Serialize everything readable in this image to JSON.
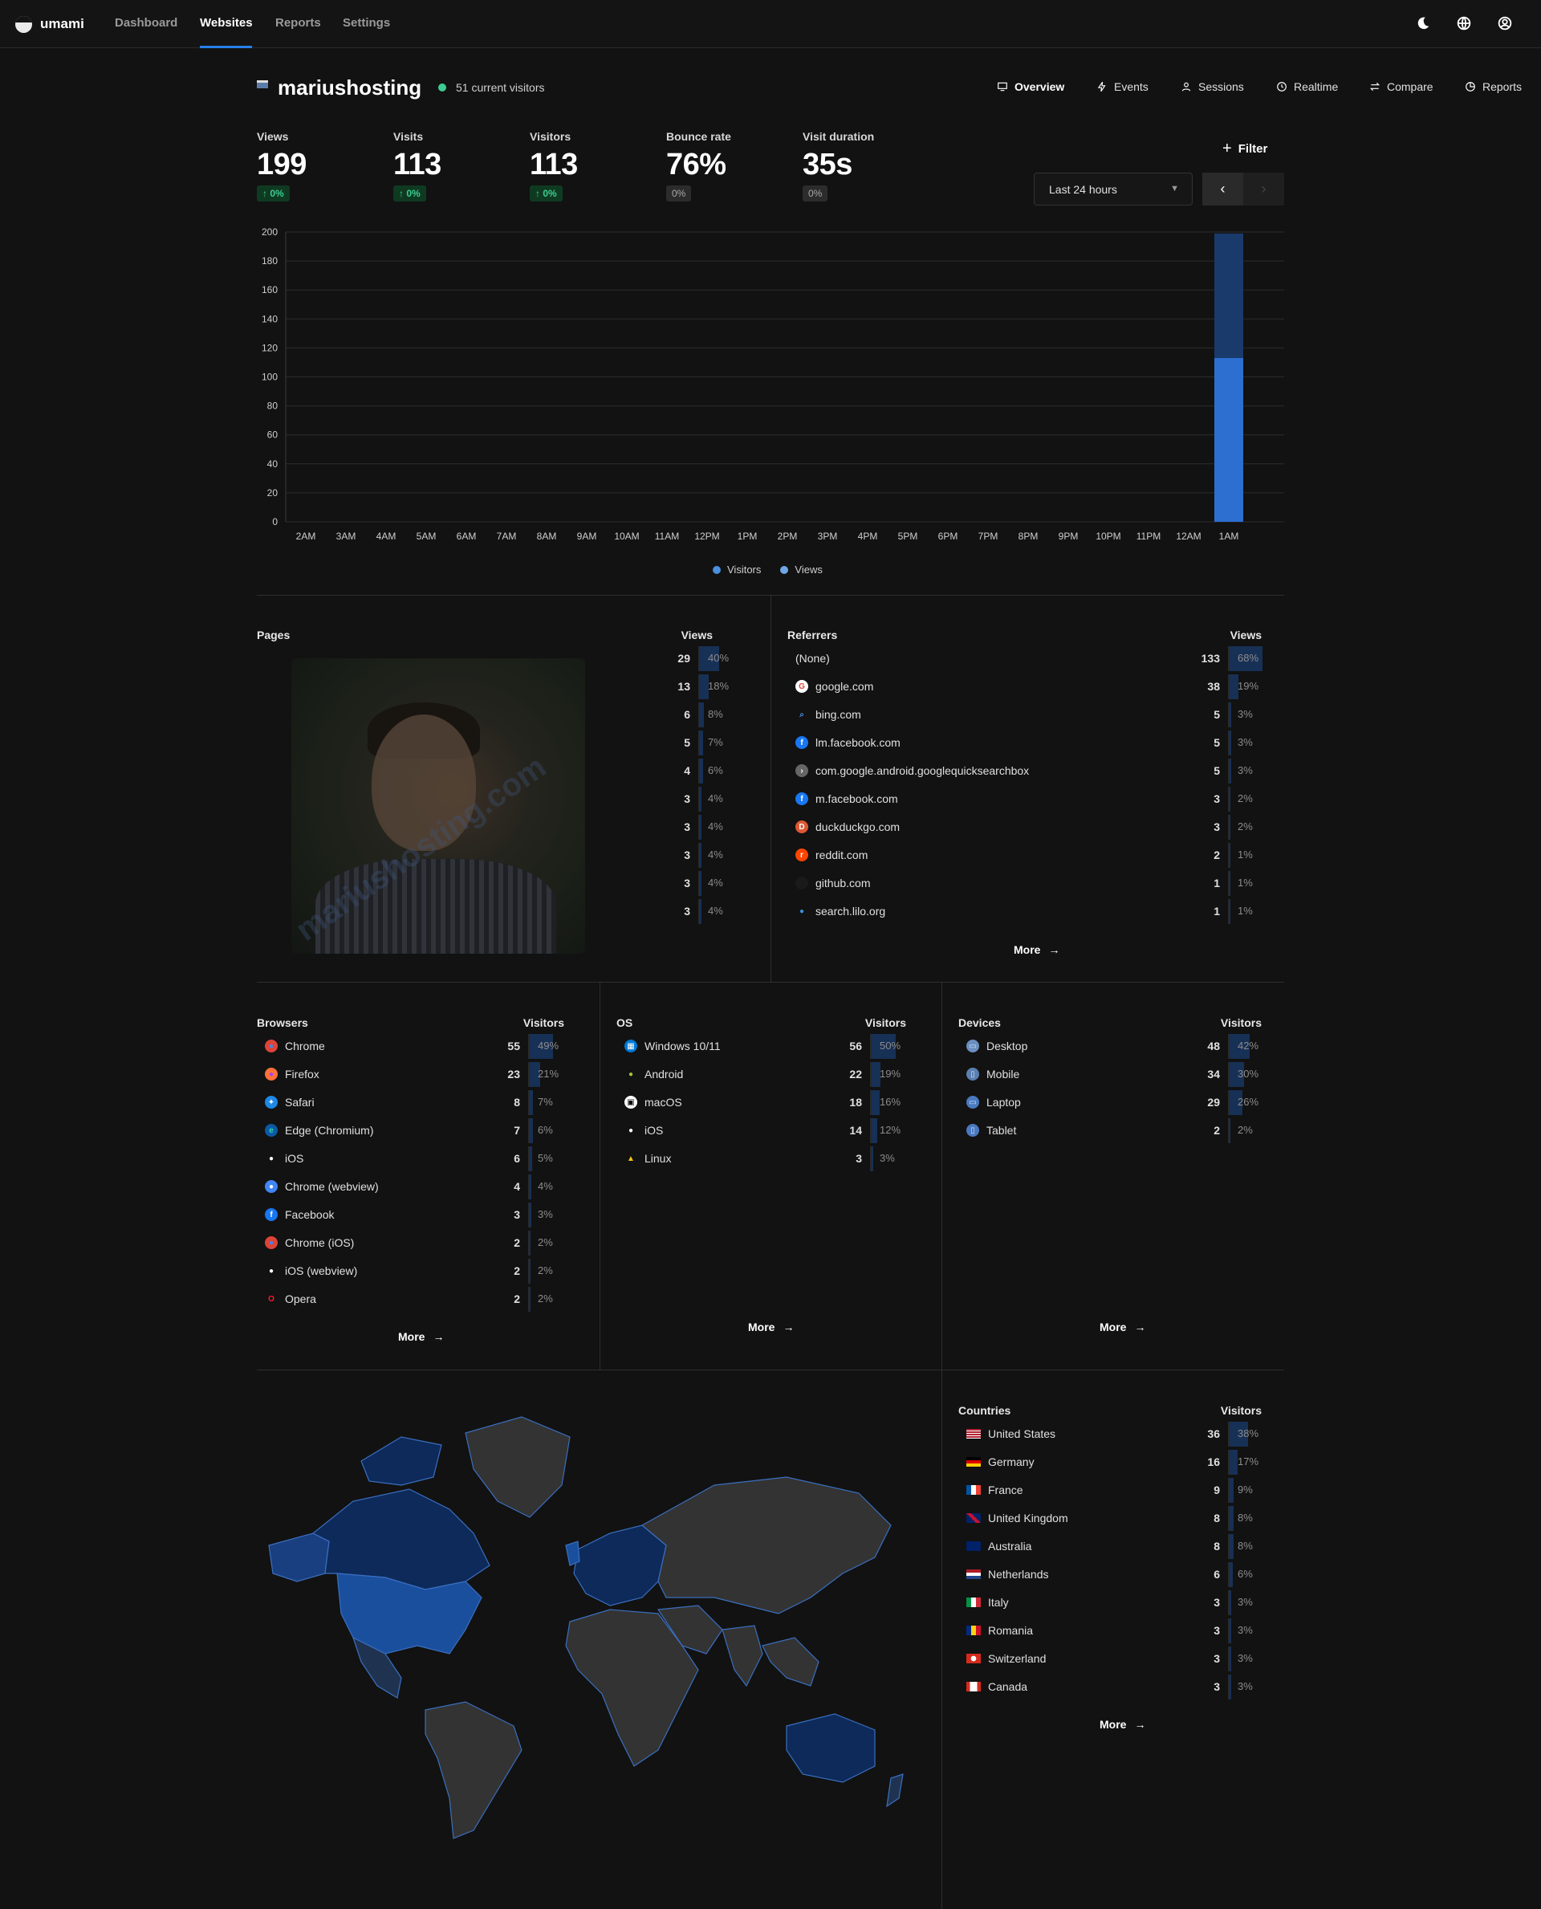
{
  "app": {
    "name": "umami"
  },
  "nav": {
    "items": [
      "Dashboard",
      "Websites",
      "Reports",
      "Settings"
    ]
  },
  "site": {
    "name": "mariushosting",
    "live": "51 current visitors"
  },
  "tabs": [
    "Overview",
    "Events",
    "Sessions",
    "Realtime",
    "Compare",
    "Reports"
  ],
  "metrics": [
    {
      "label": "Views",
      "value": "199",
      "change": "0%",
      "trend": "up"
    },
    {
      "label": "Visits",
      "value": "113",
      "change": "0%",
      "trend": "up"
    },
    {
      "label": "Visitors",
      "value": "113",
      "change": "0%",
      "trend": "up"
    },
    {
      "label": "Bounce rate",
      "value": "76%",
      "change": "0%",
      "trend": "flat"
    },
    {
      "label": "Visit duration",
      "value": "35s",
      "change": "0%",
      "trend": "flat"
    }
  ],
  "filter": {
    "label": "Filter"
  },
  "range": {
    "label": "Last 24 hours"
  },
  "colors": {
    "accent": "#2680eb",
    "visitors": "#2c6fd1",
    "views": "#1a3a6b",
    "up": "#3dcc91"
  },
  "chart_data": {
    "type": "bar",
    "categories": [
      "2AM",
      "3AM",
      "4AM",
      "5AM",
      "6AM",
      "7AM",
      "8AM",
      "9AM",
      "10AM",
      "11AM",
      "12PM",
      "1PM",
      "2PM",
      "3PM",
      "4PM",
      "5PM",
      "6PM",
      "7PM",
      "8PM",
      "9PM",
      "10PM",
      "11PM",
      "12AM",
      "1AM"
    ],
    "series": [
      {
        "name": "Visitors",
        "values": [
          0,
          0,
          0,
          0,
          0,
          0,
          0,
          0,
          0,
          0,
          0,
          0,
          0,
          0,
          0,
          0,
          0,
          0,
          0,
          0,
          0,
          0,
          0,
          113
        ]
      },
      {
        "name": "Views",
        "values": [
          0,
          0,
          0,
          0,
          0,
          0,
          0,
          0,
          0,
          0,
          0,
          0,
          0,
          0,
          0,
          0,
          0,
          0,
          0,
          0,
          0,
          0,
          0,
          199
        ]
      }
    ],
    "ylim": [
      0,
      200
    ],
    "yticks": [
      0,
      20,
      40,
      60,
      80,
      100,
      120,
      140,
      160,
      180,
      200
    ],
    "stacked": "overlay",
    "grid": true,
    "legend": "bottom"
  },
  "pages": {
    "title": "Pages",
    "metric": "Views",
    "rows": [
      {
        "count": "29",
        "pct": "40%",
        "frac": 0.4
      },
      {
        "count": "13",
        "pct": "18%",
        "frac": 0.18
      },
      {
        "count": "6",
        "pct": "8%",
        "frac": 0.08
      },
      {
        "count": "5",
        "pct": "7%",
        "frac": 0.07
      },
      {
        "count": "4",
        "pct": "6%",
        "frac": 0.06
      },
      {
        "count": "3",
        "pct": "4%",
        "frac": 0.04
      },
      {
        "count": "3",
        "pct": "4%",
        "frac": 0.04
      },
      {
        "count": "3",
        "pct": "4%",
        "frac": 0.04
      },
      {
        "count": "3",
        "pct": "4%",
        "frac": 0.04
      },
      {
        "count": "3",
        "pct": "4%",
        "frac": 0.04
      }
    ],
    "watermark": "mariushosting.com"
  },
  "referrers": {
    "title": "Referrers",
    "metric": "Views",
    "more": "More",
    "rows": [
      {
        "name": "(None)",
        "icon": "none",
        "count": "133",
        "pct": "68%",
        "frac": 0.68
      },
      {
        "name": "google.com",
        "icon": "google-icon",
        "count": "38",
        "pct": "19%",
        "frac": 0.19
      },
      {
        "name": "bing.com",
        "icon": "search-icon",
        "count": "5",
        "pct": "3%",
        "frac": 0.03
      },
      {
        "name": "lm.facebook.com",
        "icon": "facebook-icon",
        "count": "5",
        "pct": "3%",
        "frac": 0.03
      },
      {
        "name": "com.google.android.googlequicksearchbox",
        "icon": "android-search-icon",
        "count": "5",
        "pct": "3%",
        "frac": 0.03
      },
      {
        "name": "m.facebook.com",
        "icon": "facebook-icon",
        "count": "3",
        "pct": "2%",
        "frac": 0.02
      },
      {
        "name": "duckduckgo.com",
        "icon": "duckduckgo-icon",
        "count": "3",
        "pct": "2%",
        "frac": 0.02
      },
      {
        "name": "reddit.com",
        "icon": "reddit-icon",
        "count": "2",
        "pct": "1%",
        "frac": 0.01
      },
      {
        "name": "github.com",
        "icon": "github-icon",
        "count": "1",
        "pct": "1%",
        "frac": 0.01
      },
      {
        "name": "search.lilo.org",
        "icon": "lilo-icon",
        "count": "1",
        "pct": "1%",
        "frac": 0.01
      }
    ]
  },
  "browsers": {
    "title": "Browsers",
    "metric": "Visitors",
    "more": "More",
    "rows": [
      {
        "name": "Chrome",
        "icon": "chrome-icon",
        "count": "55",
        "pct": "49%",
        "frac": 0.49
      },
      {
        "name": "Firefox",
        "icon": "firefox-icon",
        "count": "23",
        "pct": "21%",
        "frac": 0.21
      },
      {
        "name": "Safari",
        "icon": "safari-icon",
        "count": "8",
        "pct": "7%",
        "frac": 0.07
      },
      {
        "name": "Edge (Chromium)",
        "icon": "edge-icon",
        "count": "7",
        "pct": "6%",
        "frac": 0.06
      },
      {
        "name": "iOS",
        "icon": "apple-icon",
        "count": "6",
        "pct": "5%",
        "frac": 0.05
      },
      {
        "name": "Chrome (webview)",
        "icon": "chrome-webview-icon",
        "count": "4",
        "pct": "4%",
        "frac": 0.04
      },
      {
        "name": "Facebook",
        "icon": "facebook-icon",
        "count": "3",
        "pct": "3%",
        "frac": 0.03
      },
      {
        "name": "Chrome (iOS)",
        "icon": "chrome-icon",
        "count": "2",
        "pct": "2%",
        "frac": 0.02
      },
      {
        "name": "iOS (webview)",
        "icon": "apple-icon",
        "count": "2",
        "pct": "2%",
        "frac": 0.02
      },
      {
        "name": "Opera",
        "icon": "opera-icon",
        "count": "2",
        "pct": "2%",
        "frac": 0.02
      }
    ]
  },
  "os": {
    "title": "OS",
    "metric": "Visitors",
    "more": "More",
    "rows": [
      {
        "name": "Windows 10/11",
        "icon": "windows-icon",
        "count": "56",
        "pct": "50%",
        "frac": 0.5
      },
      {
        "name": "Android",
        "icon": "android-icon",
        "count": "22",
        "pct": "19%",
        "frac": 0.19
      },
      {
        "name": "macOS",
        "icon": "macos-icon",
        "count": "18",
        "pct": "16%",
        "frac": 0.16
      },
      {
        "name": "iOS",
        "icon": "apple-icon",
        "count": "14",
        "pct": "12%",
        "frac": 0.12
      },
      {
        "name": "Linux",
        "icon": "linux-icon",
        "count": "3",
        "pct": "3%",
        "frac": 0.03
      }
    ]
  },
  "devices": {
    "title": "Devices",
    "metric": "Visitors",
    "more": "More",
    "rows": [
      {
        "name": "Desktop",
        "icon": "desktop-icon",
        "count": "48",
        "pct": "42%",
        "frac": 0.42
      },
      {
        "name": "Mobile",
        "icon": "mobile-icon",
        "count": "34",
        "pct": "30%",
        "frac": 0.3
      },
      {
        "name": "Laptop",
        "icon": "laptop-icon",
        "count": "29",
        "pct": "26%",
        "frac": 0.26
      },
      {
        "name": "Tablet",
        "icon": "tablet-icon",
        "count": "2",
        "pct": "2%",
        "frac": 0.02
      }
    ]
  },
  "countries": {
    "title": "Countries",
    "metric": "Visitors",
    "more": "More",
    "rows": [
      {
        "name": "United States",
        "icon": "flag-us",
        "count": "36",
        "pct": "38%",
        "frac": 0.38
      },
      {
        "name": "Germany",
        "icon": "flag-de",
        "count": "16",
        "pct": "17%",
        "frac": 0.17
      },
      {
        "name": "France",
        "icon": "flag-fr",
        "count": "9",
        "pct": "9%",
        "frac": 0.09
      },
      {
        "name": "United Kingdom",
        "icon": "flag-gb",
        "count": "8",
        "pct": "8%",
        "frac": 0.08
      },
      {
        "name": "Australia",
        "icon": "flag-au",
        "count": "8",
        "pct": "8%",
        "frac": 0.08
      },
      {
        "name": "Netherlands",
        "icon": "flag-nl",
        "count": "6",
        "pct": "6%",
        "frac": 0.06
      },
      {
        "name": "Italy",
        "icon": "flag-it",
        "count": "3",
        "pct": "3%",
        "frac": 0.03
      },
      {
        "name": "Romania",
        "icon": "flag-ro",
        "count": "3",
        "pct": "3%",
        "frac": 0.03
      },
      {
        "name": "Switzerland",
        "icon": "flag-ch",
        "count": "3",
        "pct": "3%",
        "frac": 0.03
      },
      {
        "name": "Canada",
        "icon": "flag-ca",
        "count": "3",
        "pct": "3%",
        "frac": 0.03
      }
    ]
  }
}
